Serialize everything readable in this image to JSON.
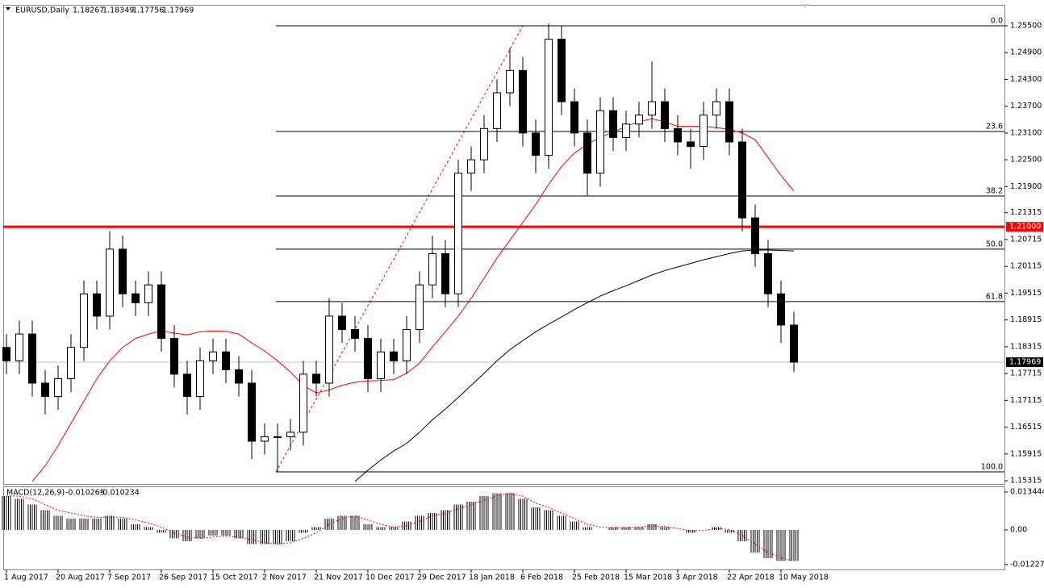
{
  "chart_data": [
    {
      "type": "candlestick",
      "title": "EURUSD,Daily",
      "quote": [
        1.18267,
        1.18349,
        1.17756,
        1.17969
      ],
      "categories": [
        "1 Aug 2017",
        null,
        null,
        null,
        "20 Aug 2017",
        null,
        null,
        null,
        "7 Sep 2017",
        null,
        null,
        null,
        "26 Sep 2017",
        null,
        null,
        null,
        "15 Oct 2017",
        null,
        null,
        null,
        "2 Nov 2017",
        null,
        null,
        null,
        "21 Nov 2017",
        null,
        null,
        null,
        "10 Dec 2017",
        null,
        null,
        null,
        "29 Dec 2017",
        null,
        null,
        null,
        "18 Jan 2018",
        null,
        null,
        null,
        "6 Feb 2018",
        null,
        null,
        null,
        "25 Feb 2018",
        null,
        null,
        null,
        "15 Mar 2018",
        null,
        null,
        null,
        "3 Apr 2018",
        null,
        null,
        null,
        "22 Apr 2018",
        null,
        null,
        null,
        "10 May 2018",
        null
      ],
      "open": [
        1.183,
        1.18,
        1.186,
        1.175,
        1.172,
        1.176,
        1.183,
        1.195,
        1.19,
        1.205,
        1.195,
        1.193,
        1.197,
        1.185,
        1.177,
        1.172,
        1.18,
        1.182,
        1.178,
        1.175,
        1.162,
        1.163,
        1.163,
        1.164,
        1.177,
        1.175,
        1.19,
        1.187,
        1.185,
        1.176,
        1.182,
        1.18,
        1.187,
        1.197,
        1.204,
        1.195,
        1.222,
        1.225,
        1.232,
        1.24,
        1.245,
        1.231,
        1.226,
        1.252,
        1.238,
        1.231,
        1.222,
        1.236,
        1.23,
        1.233,
        1.235,
        1.238,
        1.232,
        1.229,
        1.228,
        1.235,
        1.238,
        1.229,
        1.212,
        1.204,
        1.195,
        1.188
      ],
      "high": [
        1.186,
        1.189,
        1.189,
        1.178,
        1.179,
        1.186,
        1.198,
        1.198,
        1.209,
        1.208,
        1.198,
        1.2,
        1.2,
        1.188,
        1.18,
        1.183,
        1.185,
        1.185,
        1.181,
        1.178,
        1.166,
        1.166,
        1.167,
        1.18,
        1.18,
        1.194,
        1.193,
        1.19,
        1.188,
        1.185,
        1.185,
        1.19,
        1.2,
        1.208,
        1.207,
        1.225,
        1.228,
        1.235,
        1.243,
        1.25,
        1.248,
        1.234,
        1.2555,
        1.255,
        1.241,
        1.234,
        1.239,
        1.239,
        1.236,
        1.238,
        1.247,
        1.241,
        1.235,
        1.232,
        1.238,
        1.241,
        1.241,
        1.232,
        1.215,
        1.207,
        1.198,
        1.191
      ],
      "low": [
        1.177,
        1.177,
        1.172,
        1.168,
        1.169,
        1.173,
        1.18,
        1.187,
        1.187,
        1.192,
        1.19,
        1.19,
        1.182,
        1.174,
        1.168,
        1.169,
        1.177,
        1.175,
        1.172,
        1.158,
        1.159,
        1.1551,
        1.16,
        1.161,
        1.172,
        1.172,
        1.184,
        1.182,
        1.173,
        1.173,
        1.177,
        1.177,
        1.184,
        1.194,
        1.192,
        1.192,
        1.218,
        1.222,
        1.229,
        1.237,
        1.228,
        1.222,
        1.223,
        1.235,
        1.228,
        1.217,
        1.219,
        1.227,
        1.227,
        1.23,
        1.232,
        1.229,
        1.226,
        1.223,
        1.225,
        1.232,
        1.226,
        1.209,
        1.201,
        1.192,
        1.184,
        1.1775
      ],
      "close": [
        1.18,
        1.186,
        1.175,
        1.172,
        1.176,
        1.183,
        1.195,
        1.19,
        1.205,
        1.195,
        1.193,
        1.197,
        1.185,
        1.177,
        1.172,
        1.18,
        1.182,
        1.178,
        1.175,
        1.162,
        1.163,
        1.163,
        1.164,
        1.177,
        1.175,
        1.19,
        1.187,
        1.185,
        1.176,
        1.182,
        1.18,
        1.187,
        1.197,
        1.204,
        1.195,
        1.222,
        1.225,
        1.232,
        1.24,
        1.245,
        1.231,
        1.226,
        1.252,
        1.238,
        1.231,
        1.222,
        1.236,
        1.23,
        1.233,
        1.235,
        1.238,
        1.232,
        1.229,
        1.228,
        1.235,
        1.238,
        1.229,
        1.212,
        1.204,
        1.195,
        1.188,
        1.17969
      ],
      "up_color": "#ffffff",
      "down_color": "#000000",
      "moving_averages": [
        {
          "color": "#ff0000",
          "values": [
            null,
            null,
            1.153,
            1.1565,
            1.161,
            1.166,
            1.171,
            1.176,
            1.18,
            1.183,
            1.185,
            1.186,
            1.1867,
            1.1862,
            1.1858,
            1.1865,
            1.1867,
            1.1866,
            1.186,
            1.184,
            1.1822,
            1.18,
            1.1775,
            1.1745,
            1.1728,
            1.1735,
            1.1745,
            1.1752,
            1.1755,
            1.1756,
            1.1758,
            1.1772,
            1.1795,
            1.1831,
            1.1865,
            1.19,
            1.194,
            1.1985,
            1.203,
            1.207,
            1.211,
            1.215,
            1.2195,
            1.2235,
            1.2265,
            1.2285,
            1.23,
            1.2312,
            1.2325,
            1.2335,
            1.2342,
            1.2335,
            1.2325,
            1.2325,
            1.2325,
            1.2322,
            1.2318,
            1.231,
            1.2295,
            1.2255,
            1.2215,
            1.218
          ]
        },
        {
          "color": "#000000",
          "values": [
            null,
            null,
            null,
            null,
            null,
            null,
            null,
            null,
            null,
            null,
            null,
            null,
            null,
            null,
            null,
            null,
            null,
            null,
            null,
            null,
            null,
            null,
            null,
            null,
            null,
            null,
            null,
            1.153,
            1.1555,
            1.1578,
            1.1598,
            1.1615,
            1.164,
            1.1668,
            1.1692,
            1.1718,
            1.1745,
            1.1772,
            1.18,
            1.1825,
            1.1845,
            1.1865,
            1.1882,
            1.1898,
            1.1915,
            1.193,
            1.1945,
            1.1957,
            1.1968,
            1.198,
            1.1992,
            1.2002,
            1.201,
            1.2018,
            1.2026,
            1.2033,
            1.204,
            1.2046,
            1.2048,
            1.2048,
            1.2047,
            1.2046
          ]
        }
      ],
      "ylim": [
        1.15243,
        1.25933
      ],
      "yticks": [
        {
          "value": 1.255,
          "label": "1.25500"
        },
        {
          "value": 1.249,
          "label": "1.24900"
        },
        {
          "value": 1.243,
          "label": "1.24300"
        },
        {
          "value": 1.237,
          "label": "1.23700"
        },
        {
          "value": 1.231,
          "label": "1.23100"
        },
        {
          "value": 1.225,
          "label": "1.22500"
        },
        {
          "value": 1.219,
          "label": "1.21900"
        },
        1.21315,
        1.20715,
        1.20115,
        1.19515,
        1.18915,
        1.18315,
        1.17715,
        1.17115,
        1.16515,
        1.15915,
        1.15315
      ],
      "fibonacci": [
        {
          "level": {
            "value": 0,
            "label": "0.0"
          },
          "price": 1.255
        },
        {
          "level": {
            "value": 23.6,
            "label": "23.6"
          },
          "price": 1.23134
        },
        {
          "level": {
            "value": 38.2,
            "label": "38.2"
          },
          "price": 1.21689
        },
        {
          "level": {
            "value": 50,
            "label": "50.0"
          },
          "price": 1.20501
        },
        {
          "level": {
            "value": 61.8,
            "label": "61.8"
          },
          "price": 1.19327
        },
        {
          "level": {
            "value": 100,
            "label": "100.0"
          },
          "price": 1.15513
        }
      ],
      "horizontal_line": {
        "value": 1.21,
        "label": "1.21000",
        "color": "#ff0000"
      }
    },
    {
      "type": "macd",
      "title": "MACD(12,26,9)",
      "legend_values": [
        -0.010265,
        -0.010234
      ],
      "values": [
        0.012,
        0.011,
        0.009,
        0.007,
        0.005,
        0.004,
        0.004,
        0.004,
        0.005,
        0.004,
        0.002,
        0.001,
        -0.001,
        -0.003,
        -0.004,
        -0.003,
        -0.002,
        -0.002,
        -0.003,
        -0.005,
        -0.005,
        -0.005,
        -0.004,
        -0.001,
        0.001,
        0.004,
        0.005,
        0.005,
        0.002,
        0.001,
        0.001,
        0.003,
        0.005,
        0.006,
        0.007,
        0.009,
        0.01,
        0.012,
        0.013,
        0.013,
        0.011,
        0.008,
        0.007,
        0.005,
        0.003,
        0.001,
        0.0,
        0.001,
        0.001,
        0.001,
        0.002,
        0.001,
        0.0,
        -0.001,
        0.0,
        0.001,
        -0.001,
        -0.004,
        -0.008,
        -0.01,
        -0.011,
        -0.011
      ],
      "signal": [
        0.012,
        0.012,
        0.011,
        0.009,
        0.007,
        0.006,
        0.005,
        0.0045,
        0.0045,
        0.0045,
        0.0035,
        0.0025,
        0.001,
        -0.001,
        -0.0025,
        -0.003,
        -0.0025,
        -0.0022,
        -0.0025,
        -0.0035,
        -0.0045,
        -0.005,
        -0.0045,
        -0.003,
        -0.001,
        0.002,
        0.004,
        0.005,
        0.0035,
        0.002,
        0.001,
        0.0015,
        0.003,
        0.005,
        0.006,
        0.0075,
        0.009,
        0.0105,
        0.012,
        0.013,
        0.012,
        0.0095,
        0.008,
        0.006,
        0.004,
        0.002,
        0.001,
        0.0008,
        0.0008,
        0.001,
        0.0015,
        0.0012,
        0.0005,
        -0.0003,
        -0.0002,
        0.0005,
        0.0002,
        -0.002,
        -0.005,
        -0.008,
        -0.01,
        -0.011
      ],
      "color": "#000000",
      "signal_color": "#ff0000",
      "ylim": [
        -0.01402,
        0.01516
      ],
      "yticks": [
        0.013444,
        {
          "value": 0,
          "label": "0.00"
        },
        -0.01227
      ]
    }
  ]
}
